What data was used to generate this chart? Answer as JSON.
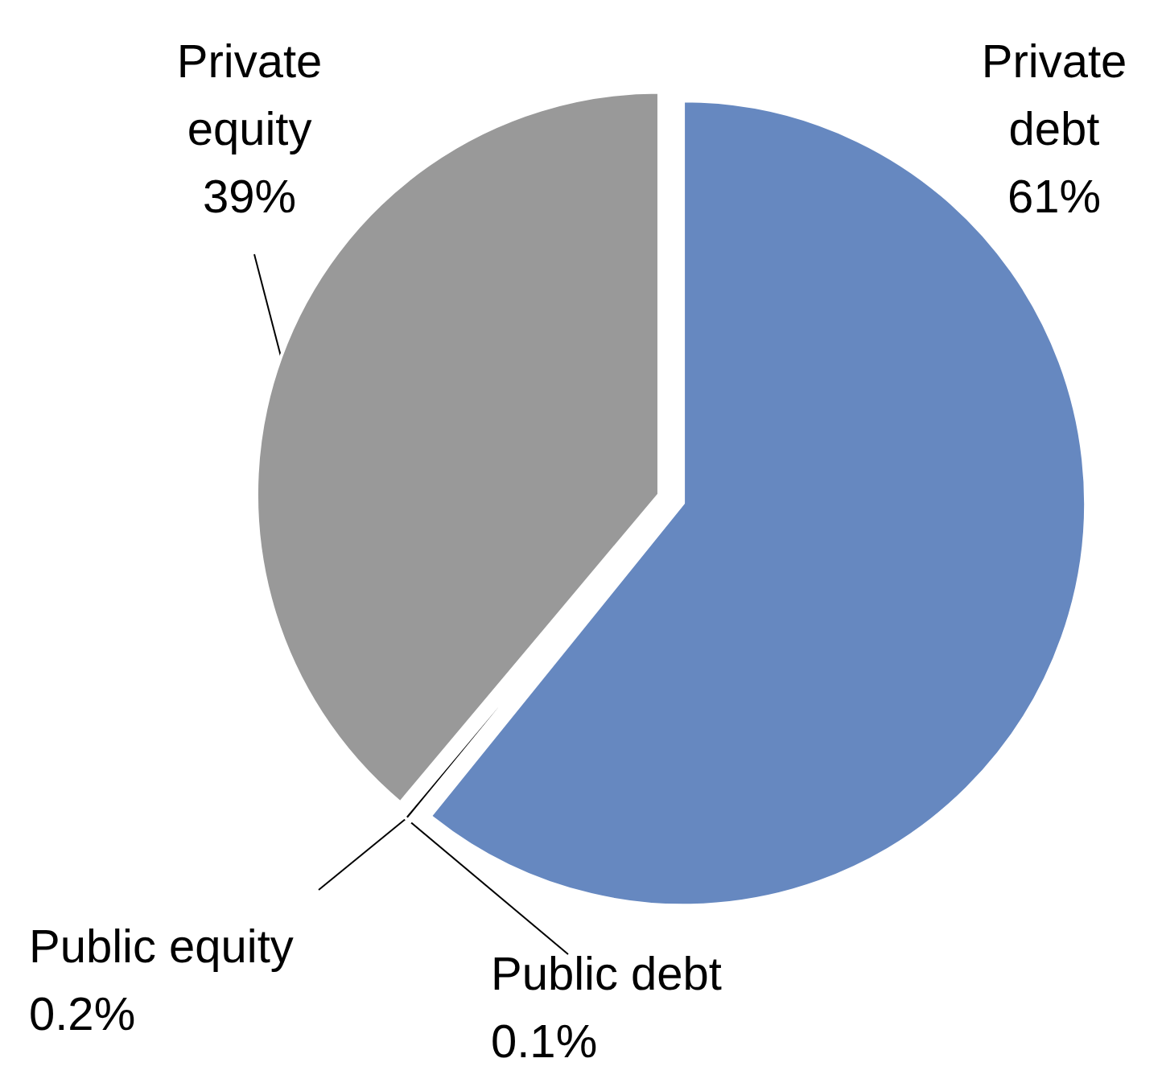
{
  "chart_data": {
    "type": "pie",
    "categories": [
      "Private debt",
      "Public debt",
      "Public equity",
      "Private equity"
    ],
    "values": [
      61,
      0.1,
      0.2,
      39
    ],
    "colors": [
      "#6688c0",
      "#000000",
      "#000000",
      "#999999"
    ],
    "value_labels": [
      "61%",
      "0.1%",
      "0.2%",
      "39%"
    ],
    "legend": false
  }
}
